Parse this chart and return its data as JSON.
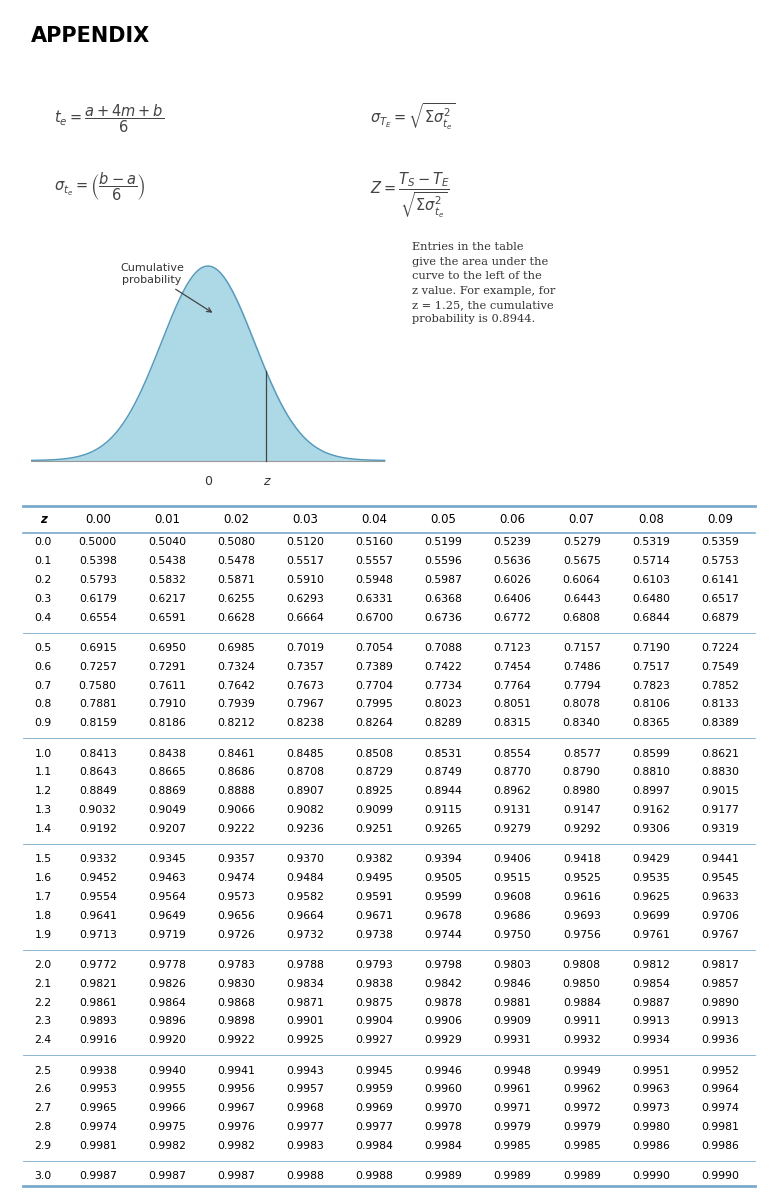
{
  "title": "APPENDIX",
  "bg_color": "#ffffff",
  "annotation_text": "Cumulative\nprobability",
  "entries_text": "Entries in the table\ngive the area under the\ncurve to the left of the\nz value. For example, for\nz = 1.25, the cumulative\nprobability is 0.8944.",
  "col_headers": [
    "z",
    "0.00",
    "0.01",
    "0.02",
    "0.03",
    "0.04",
    "0.05",
    "0.06",
    "0.07",
    "0.08",
    "0.09"
  ],
  "row_labels": [
    "0.0",
    "0.1",
    "0.2",
    "0.3",
    "0.4",
    "0.5",
    "0.6",
    "0.7",
    "0.8",
    "0.9",
    "1.0",
    "1.1",
    "1.2",
    "1.3",
    "1.4",
    "1.5",
    "1.6",
    "1.7",
    "1.8",
    "1.9",
    "2.0",
    "2.1",
    "2.2",
    "2.3",
    "2.4",
    "2.5",
    "2.6",
    "2.7",
    "2.8",
    "2.9",
    "3.0"
  ],
  "table_data": [
    [
      "0.5000",
      "0.5040",
      "0.5080",
      "0.5120",
      "0.5160",
      "0.5199",
      "0.5239",
      "0.5279",
      "0.5319",
      "0.5359"
    ],
    [
      "0.5398",
      "0.5438",
      "0.5478",
      "0.5517",
      "0.5557",
      "0.5596",
      "0.5636",
      "0.5675",
      "0.5714",
      "0.5753"
    ],
    [
      "0.5793",
      "0.5832",
      "0.5871",
      "0.5910",
      "0.5948",
      "0.5987",
      "0.6026",
      "0.6064",
      "0.6103",
      "0.6141"
    ],
    [
      "0.6179",
      "0.6217",
      "0.6255",
      "0.6293",
      "0.6331",
      "0.6368",
      "0.6406",
      "0.6443",
      "0.6480",
      "0.6517"
    ],
    [
      "0.6554",
      "0.6591",
      "0.6628",
      "0.6664",
      "0.6700",
      "0.6736",
      "0.6772",
      "0.6808",
      "0.6844",
      "0.6879"
    ],
    [
      "0.6915",
      "0.6950",
      "0.6985",
      "0.7019",
      "0.7054",
      "0.7088",
      "0.7123",
      "0.7157",
      "0.7190",
      "0.7224"
    ],
    [
      "0.7257",
      "0.7291",
      "0.7324",
      "0.7357",
      "0.7389",
      "0.7422",
      "0.7454",
      "0.7486",
      "0.7517",
      "0.7549"
    ],
    [
      "0.7580",
      "0.7611",
      "0.7642",
      "0.7673",
      "0.7704",
      "0.7734",
      "0.7764",
      "0.7794",
      "0.7823",
      "0.7852"
    ],
    [
      "0.7881",
      "0.7910",
      "0.7939",
      "0.7967",
      "0.7995",
      "0.8023",
      "0.8051",
      "0.8078",
      "0.8106",
      "0.8133"
    ],
    [
      "0.8159",
      "0.8186",
      "0.8212",
      "0.8238",
      "0.8264",
      "0.8289",
      "0.8315",
      "0.8340",
      "0.8365",
      "0.8389"
    ],
    [
      "0.8413",
      "0.8438",
      "0.8461",
      "0.8485",
      "0.8508",
      "0.8531",
      "0.8554",
      "0.8577",
      "0.8599",
      "0.8621"
    ],
    [
      "0.8643",
      "0.8665",
      "0.8686",
      "0.8708",
      "0.8729",
      "0.8749",
      "0.8770",
      "0.8790",
      "0.8810",
      "0.8830"
    ],
    [
      "0.8849",
      "0.8869",
      "0.8888",
      "0.8907",
      "0.8925",
      "0.8944",
      "0.8962",
      "0.8980",
      "0.8997",
      "0.9015"
    ],
    [
      "0.9032",
      "0.9049",
      "0.9066",
      "0.9082",
      "0.9099",
      "0.9115",
      "0.9131",
      "0.9147",
      "0.9162",
      "0.9177"
    ],
    [
      "0.9192",
      "0.9207",
      "0.9222",
      "0.9236",
      "0.9251",
      "0.9265",
      "0.9279",
      "0.9292",
      "0.9306",
      "0.9319"
    ],
    [
      "0.9332",
      "0.9345",
      "0.9357",
      "0.9370",
      "0.9382",
      "0.9394",
      "0.9406",
      "0.9418",
      "0.9429",
      "0.9441"
    ],
    [
      "0.9452",
      "0.9463",
      "0.9474",
      "0.9484",
      "0.9495",
      "0.9505",
      "0.9515",
      "0.9525",
      "0.9535",
      "0.9545"
    ],
    [
      "0.9554",
      "0.9564",
      "0.9573",
      "0.9582",
      "0.9591",
      "0.9599",
      "0.9608",
      "0.9616",
      "0.9625",
      "0.9633"
    ],
    [
      "0.9641",
      "0.9649",
      "0.9656",
      "0.9664",
      "0.9671",
      "0.9678",
      "0.9686",
      "0.9693",
      "0.9699",
      "0.9706"
    ],
    [
      "0.9713",
      "0.9719",
      "0.9726",
      "0.9732",
      "0.9738",
      "0.9744",
      "0.9750",
      "0.9756",
      "0.9761",
      "0.9767"
    ],
    [
      "0.9772",
      "0.9778",
      "0.9783",
      "0.9788",
      "0.9793",
      "0.9798",
      "0.9803",
      "0.9808",
      "0.9812",
      "0.9817"
    ],
    [
      "0.9821",
      "0.9826",
      "0.9830",
      "0.9834",
      "0.9838",
      "0.9842",
      "0.9846",
      "0.9850",
      "0.9854",
      "0.9857"
    ],
    [
      "0.9861",
      "0.9864",
      "0.9868",
      "0.9871",
      "0.9875",
      "0.9878",
      "0.9881",
      "0.9884",
      "0.9887",
      "0.9890"
    ],
    [
      "0.9893",
      "0.9896",
      "0.9898",
      "0.9901",
      "0.9904",
      "0.9906",
      "0.9909",
      "0.9911",
      "0.9913",
      "0.9913"
    ],
    [
      "0.9916",
      "0.9920",
      "0.9922",
      "0.9925",
      "0.9927",
      "0.9929",
      "0.9931",
      "0.9932",
      "0.9934",
      "0.9936"
    ],
    [
      "0.9938",
      "0.9940",
      "0.9941",
      "0.9943",
      "0.9945",
      "0.9946",
      "0.9948",
      "0.9949",
      "0.9951",
      "0.9952"
    ],
    [
      "0.9953",
      "0.9955",
      "0.9956",
      "0.9957",
      "0.9959",
      "0.9960",
      "0.9961",
      "0.9962",
      "0.9963",
      "0.9964"
    ],
    [
      "0.9965",
      "0.9966",
      "0.9967",
      "0.9968",
      "0.9969",
      "0.9970",
      "0.9971",
      "0.9972",
      "0.9973",
      "0.9974"
    ],
    [
      "0.9974",
      "0.9975",
      "0.9976",
      "0.9977",
      "0.9977",
      "0.9978",
      "0.9979",
      "0.9979",
      "0.9980",
      "0.9981"
    ],
    [
      "0.9981",
      "0.9982",
      "0.9982",
      "0.9983",
      "0.9984",
      "0.9984",
      "0.9985",
      "0.9985",
      "0.9986",
      "0.9986"
    ],
    [
      "0.9987",
      "0.9987",
      "0.9987",
      "0.9988",
      "0.9988",
      "0.9989",
      "0.9989",
      "0.9989",
      "0.9990",
      "0.9990"
    ]
  ],
  "group_separators_after": [
    4,
    9,
    14,
    19,
    24,
    29
  ],
  "curve_color": "#add8e6",
  "curve_edge_color": "#5599bb",
  "table_line_color": "#7aaacc",
  "text_color": "#000000"
}
